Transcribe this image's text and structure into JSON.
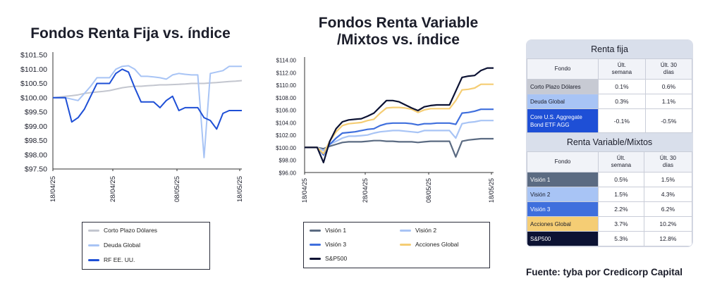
{
  "charts": {
    "left_title": "Fondos Renta Fija vs. índice",
    "mid_title_line1": "Fondos Renta Variable",
    "mid_title_line2": "/Mixtos vs. índice"
  },
  "chart_data": [
    {
      "type": "line",
      "title": "Fondos Renta Fija vs. índice",
      "x_tick_labels": [
        "18/04/25",
        "28/04/25",
        "08/05/25",
        "18/05/25"
      ],
      "y_tick_labels": [
        "$97.50",
        "$98.00",
        "$98.50",
        "$99.00",
        "$99.50",
        "$100.00",
        "$100.50",
        "$101.00",
        "$101.50"
      ],
      "ylim": [
        97.5,
        101.5
      ],
      "x_range_days": [
        0,
        30
      ],
      "grid": false,
      "legend_position": "bottom",
      "series": [
        {
          "name": "Corto Plazo Dólares",
          "color": "#c3c6cf",
          "x": [
            0,
            1,
            2,
            3,
            4,
            5,
            6,
            7,
            8,
            9,
            10,
            11,
            12,
            13,
            14,
            15,
            16,
            17,
            18,
            19,
            20,
            21,
            22,
            23,
            24,
            25,
            26,
            27,
            28,
            29,
            30
          ],
          "y": [
            100.0,
            100.02,
            100.05,
            100.07,
            100.1,
            100.15,
            100.18,
            100.2,
            100.22,
            100.25,
            100.3,
            100.35,
            100.38,
            100.4,
            100.4,
            100.42,
            100.43,
            100.45,
            100.45,
            100.46,
            100.47,
            100.48,
            100.5,
            100.5,
            100.5,
            100.52,
            100.53,
            100.55,
            100.57,
            100.58,
            100.6
          ]
        },
        {
          "name": "Deuda Global",
          "color": "#a8c4f5",
          "x": [
            0,
            1,
            2,
            3,
            4,
            5,
            6,
            7,
            8,
            9,
            10,
            11,
            12,
            13,
            14,
            15,
            16,
            17,
            18,
            19,
            20,
            21,
            22,
            23,
            24,
            25,
            26,
            27,
            28,
            29,
            30
          ],
          "y": [
            100.0,
            100.0,
            100.0,
            99.95,
            99.9,
            100.15,
            100.4,
            100.7,
            100.7,
            100.7,
            101.0,
            101.1,
            101.12,
            101.0,
            100.75,
            100.75,
            100.73,
            100.7,
            100.65,
            100.8,
            100.85,
            100.82,
            100.8,
            100.8,
            97.9,
            100.85,
            100.9,
            100.95,
            101.1,
            101.1,
            101.1
          ]
        },
        {
          "name": "RF EE. UU.",
          "color": "#1e4fd6",
          "x": [
            0,
            1,
            2,
            3,
            4,
            5,
            6,
            7,
            8,
            9,
            10,
            11,
            12,
            13,
            14,
            15,
            16,
            17,
            18,
            19,
            20,
            21,
            22,
            23,
            24,
            25,
            26,
            27,
            28,
            29,
            30
          ],
          "y": [
            100.0,
            100.0,
            100.0,
            99.15,
            99.3,
            99.6,
            100.05,
            100.5,
            100.5,
            100.5,
            100.85,
            101.0,
            100.9,
            100.35,
            99.85,
            99.85,
            99.85,
            99.65,
            99.9,
            100.05,
            99.55,
            99.65,
            99.65,
            99.65,
            99.3,
            99.2,
            98.9,
            99.45,
            99.55,
            99.55,
            99.55
          ]
        }
      ]
    },
    {
      "type": "line",
      "title": "Fondos Renta Variable /Mixtos vs. índice",
      "x_tick_labels": [
        "18/04/25",
        "28/04/25",
        "08/05/25",
        "18/05/25"
      ],
      "y_tick_labels": [
        "$96.00",
        "$98.00",
        "$100.00",
        "$102.00",
        "$104.00",
        "$106.00",
        "$108.00",
        "$110.00",
        "$112.00",
        "$114.00"
      ],
      "ylim": [
        96,
        114
      ],
      "x_range_days": [
        0,
        30
      ],
      "grid": false,
      "legend_position": "bottom",
      "series": [
        {
          "name": "Visión 1",
          "color": "#5b6b82",
          "x": [
            0,
            1,
            2,
            3,
            4,
            5,
            6,
            7,
            8,
            9,
            10,
            11,
            12,
            13,
            14,
            15,
            16,
            17,
            18,
            19,
            20,
            21,
            22,
            23,
            24,
            25,
            26,
            27,
            28,
            29,
            30
          ],
          "y": [
            100.0,
            100.0,
            100.0,
            99.8,
            100.2,
            100.5,
            100.8,
            100.9,
            100.9,
            100.9,
            101.0,
            101.1,
            101.1,
            101.0,
            101.0,
            100.9,
            100.9,
            100.9,
            100.8,
            100.9,
            101.0,
            101.0,
            101.0,
            101.0,
            98.5,
            101.0,
            101.2,
            101.3,
            101.4,
            101.4,
            101.4
          ]
        },
        {
          "name": "Visión 2",
          "color": "#a8c4f5",
          "x": [
            0,
            1,
            2,
            3,
            4,
            5,
            6,
            7,
            8,
            9,
            10,
            11,
            12,
            13,
            14,
            15,
            16,
            17,
            18,
            19,
            20,
            21,
            22,
            23,
            24,
            25,
            26,
            27,
            28,
            29,
            30
          ],
          "y": [
            100.0,
            100.0,
            100.0,
            99.5,
            100.5,
            101.0,
            101.5,
            101.8,
            101.8,
            101.9,
            102.0,
            102.3,
            102.5,
            102.6,
            102.7,
            102.7,
            102.6,
            102.5,
            102.4,
            102.7,
            102.7,
            102.7,
            102.7,
            102.7,
            101.5,
            103.8,
            104.0,
            104.1,
            104.3,
            104.3,
            104.3
          ]
        },
        {
          "name": "Visión 3",
          "color": "#3f6fdd",
          "x": [
            0,
            1,
            2,
            3,
            4,
            5,
            6,
            7,
            8,
            9,
            10,
            11,
            12,
            13,
            14,
            15,
            16,
            17,
            18,
            19,
            20,
            21,
            22,
            23,
            24,
            25,
            26,
            27,
            28,
            29,
            30
          ],
          "y": [
            100.0,
            100.0,
            100.0,
            98.8,
            100.5,
            101.5,
            102.3,
            102.4,
            102.5,
            102.7,
            102.9,
            103.0,
            103.5,
            103.8,
            103.9,
            103.9,
            103.9,
            103.8,
            103.6,
            103.8,
            103.8,
            103.9,
            103.9,
            103.9,
            103.7,
            105.5,
            105.6,
            105.8,
            106.1,
            106.1,
            106.1
          ]
        },
        {
          "name": "Acciones Global",
          "color": "#f5cd74",
          "x": [
            0,
            1,
            2,
            3,
            4,
            5,
            6,
            7,
            8,
            9,
            10,
            11,
            12,
            13,
            14,
            15,
            16,
            17,
            18,
            19,
            20,
            21,
            22,
            23,
            24,
            25,
            26,
            27,
            28,
            29,
            30
          ],
          "y": [
            100.0,
            100.0,
            100.0,
            99.0,
            101.0,
            102.5,
            103.5,
            103.8,
            103.9,
            104.0,
            104.3,
            104.5,
            105.5,
            106.3,
            106.4,
            106.4,
            106.3,
            106.1,
            105.6,
            106.0,
            106.2,
            106.2,
            106.2,
            106.2,
            107.5,
            109.2,
            109.3,
            109.5,
            110.1,
            110.1,
            110.1
          ]
        },
        {
          "name": "S&P500",
          "color": "#0c1233",
          "x": [
            0,
            1,
            2,
            3,
            4,
            5,
            6,
            7,
            8,
            9,
            10,
            11,
            12,
            13,
            14,
            15,
            16,
            17,
            18,
            19,
            20,
            21,
            22,
            23,
            24,
            25,
            26,
            27,
            28,
            29,
            30
          ],
          "y": [
            100.0,
            100.0,
            100.0,
            97.6,
            101.0,
            103.0,
            104.1,
            104.4,
            104.5,
            104.6,
            105.0,
            105.5,
            106.5,
            107.5,
            107.5,
            107.3,
            106.8,
            106.3,
            105.9,
            106.5,
            106.7,
            106.8,
            106.8,
            106.8,
            109.0,
            111.2,
            111.4,
            111.5,
            112.3,
            112.7,
            112.7
          ]
        }
      ]
    },
    {
      "type": "table",
      "title": "Renta fija",
      "columns": [
        "Fondo",
        "Últ. semana",
        "Últ. 30 días"
      ],
      "rows": [
        [
          "Corto Plazo Dólares",
          "0.1%",
          "0.6%"
        ],
        [
          "Deuda Global",
          "0.3%",
          "1.1%"
        ],
        [
          "Core U.S. Aggregate Bond ETF AGG",
          "-0.1%",
          "-0.5%"
        ]
      ]
    },
    {
      "type": "table",
      "title": "Renta Variable/Mixtos",
      "columns": [
        "Fondo",
        "Últ. semana",
        "Últ. 30 días"
      ],
      "rows": [
        [
          "Visión 1",
          "0.5%",
          "1.5%"
        ],
        [
          "Visión 2",
          "1.5%",
          "4.3%"
        ],
        [
          "Visión 3",
          "2.2%",
          "6.2%"
        ],
        [
          "Acciones Global",
          "3.7%",
          "10.2%"
        ],
        [
          "S&P500",
          "5.3%",
          "12.8%"
        ]
      ]
    }
  ],
  "tables": {
    "fija": {
      "title": "Renta fija",
      "head_fondo": "Fondo",
      "head_week_1": "Últ.",
      "head_week_2": "semana",
      "head_month_1": "Últ. 30",
      "head_month_2": "días",
      "rows": [
        {
          "name": "Corto Plazo Dólares",
          "week": "0.1%",
          "month": "0.6%",
          "bg": "#c7cad3",
          "fg": "#1b1d2a"
        },
        {
          "name": "Deuda Global",
          "week": "0.3%",
          "month": "1.1%",
          "bg": "#a8c4f5",
          "fg": "#1b1d2a"
        },
        {
          "name_1": "Core U.S. Aggregate",
          "name_2": "Bond ETF AGG",
          "week": "-0.1%",
          "month": "-0.5%",
          "bg": "#1e4fd6",
          "fg": "#ffffff"
        }
      ]
    },
    "variable": {
      "title": "Renta Variable/Mixtos",
      "head_fondo": "Fondo",
      "head_week_1": "Últ.",
      "head_week_2": "semana",
      "head_month_1": "Últ. 30",
      "head_month_2": "días",
      "rows": [
        {
          "name": "Visión 1",
          "week": "0.5%",
          "month": "1.5%",
          "bg": "#5b6b82",
          "fg": "#ffffff"
        },
        {
          "name": "Visión 2",
          "week": "1.5%",
          "month": "4.3%",
          "bg": "#a8c4f5",
          "fg": "#1b1d2a"
        },
        {
          "name": "Visión 3",
          "week": "2.2%",
          "month": "6.2%",
          "bg": "#3f6fdd",
          "fg": "#ffffff"
        },
        {
          "name": "Acciones Global",
          "week": "3.7%",
          "month": "10.2%",
          "bg": "#f5cd74",
          "fg": "#1b1d2a"
        },
        {
          "name": "S&P500",
          "week": "5.3%",
          "month": "12.8%",
          "bg": "#0c1233",
          "fg": "#ffffff"
        }
      ]
    }
  },
  "source": "Fuente: tyba por Credicorp Capital"
}
